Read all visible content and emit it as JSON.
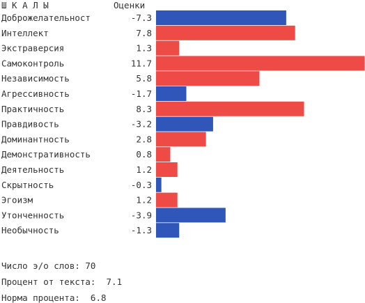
{
  "header": {
    "scales_label": "Ш К А Л Ы",
    "scores_label": "Оценки"
  },
  "chart_data": {
    "type": "bar",
    "orientation": "horizontal",
    "categories": [
      "Доброжелательност",
      "Интеллект",
      "Экстраверсия",
      "Самоконтроль",
      "Независимость",
      "Агрессивность",
      "Практичность",
      "Правдивость",
      "Доминантность",
      "Демонстративность",
      "Деятельность",
      "Скрытность",
      "Эгоизм",
      "Утонченность",
      "Необычность"
    ],
    "values": [
      -7.3,
      7.8,
      1.3,
      11.7,
      5.8,
      -1.7,
      8.3,
      -3.2,
      2.8,
      0.8,
      1.2,
      -0.3,
      1.2,
      -3.9,
      -1.3
    ],
    "value_labels": [
      "-7.3",
      "7.8",
      "1.3",
      "11.7",
      "5.8",
      "-1.7",
      "8.3",
      "-3.2",
      "2.8",
      "0.8",
      "1.2",
      "-0.3",
      "1.2",
      "-3.9",
      "-1.3"
    ],
    "bar_magnitude_note": "bar length proportional to absolute value",
    "xlim": [
      0,
      11.7
    ],
    "colors": {
      "positive": "#ee4a46",
      "negative": "#2f56b8"
    },
    "grid": false,
    "legend": "none"
  },
  "footer": {
    "word_count": "Число э/о слов: 70",
    "text_percent": "Процент от текста:  7.1",
    "norm_percent": "Норма процента:  6.8"
  }
}
